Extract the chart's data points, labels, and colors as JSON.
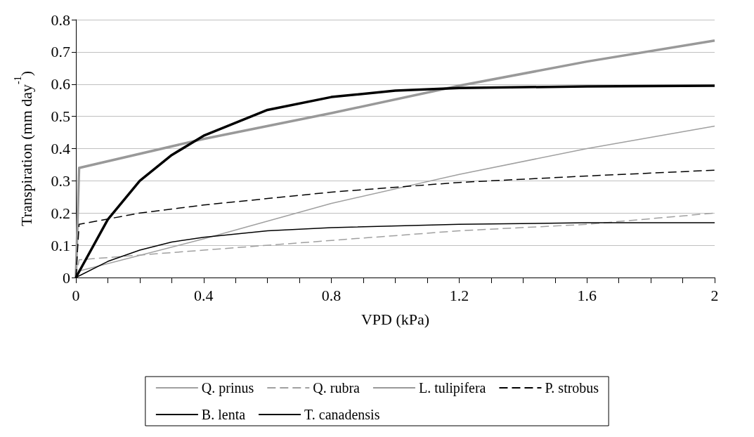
{
  "chart_data": {
    "type": "line",
    "xlabel": "VPD (kPa)",
    "ylabel": "Transpiration (mm day$^{-1}$)",
    "xlim": [
      0,
      2
    ],
    "ylim": [
      0,
      0.8
    ],
    "xticks": [
      0,
      {
        "value": 0.1,
        "label": null
      },
      {
        "value": 0.2,
        "label": null
      },
      {
        "value": 0.3,
        "label": null
      },
      0.4,
      {
        "value": 0.5,
        "label": null
      },
      {
        "value": 0.6,
        "label": null
      },
      {
        "value": 0.7,
        "label": null
      },
      0.8,
      {
        "value": 0.9,
        "label": null
      },
      {
        "value": 1.0,
        "label": null
      },
      {
        "value": 1.1,
        "label": null
      },
      1.2,
      {
        "value": 1.3,
        "label": null
      },
      {
        "value": 1.4,
        "label": null
      },
      {
        "value": 1.5,
        "label": null
      },
      1.6,
      {
        "value": 1.7,
        "label": null
      },
      {
        "value": 1.8,
        "label": null
      },
      {
        "value": 1.9,
        "label": null
      },
      2
    ],
    "yticks": [
      0,
      0.1,
      0.2,
      0.3,
      0.4,
      0.5,
      0.6,
      0.7,
      0.8
    ],
    "grid": "y",
    "legend": "bottom",
    "marker": "none",
    "series": [
      {
        "name": "Q. prinus",
        "color": "#a0a0a0",
        "line_style": "solid",
        "x": [
          0,
          0.01,
          0.4,
          0.8,
          1.2,
          1.6,
          2
        ],
        "values": [
          0,
          0.02,
          0.12,
          0.23,
          0.32,
          0.4,
          0.47
        ]
      },
      {
        "name": "Q. rubra",
        "color": "#a0a0a0",
        "line_style": "dashed",
        "x": [
          0,
          0.01,
          0.4,
          0.8,
          1.2,
          1.6,
          2
        ],
        "values": [
          0,
          0.055,
          0.085,
          0.115,
          0.145,
          0.165,
          0.2
        ]
      },
      {
        "name": "L. tulipifera",
        "color": "#999999",
        "line_style": "solid",
        "x": [
          0,
          0.01,
          0.4,
          0.8,
          1.2,
          1.6,
          2
        ],
        "values": [
          0,
          0.34,
          0.43,
          0.51,
          0.595,
          0.67,
          0.735
        ]
      },
      {
        "name": "P. strobus",
        "color": "#000000",
        "line_style": "dashed",
        "x": [
          0,
          0.01,
          0.2,
          0.4,
          0.8,
          1.2,
          1.6,
          2
        ],
        "values": [
          0,
          0.165,
          0.2,
          0.225,
          0.265,
          0.295,
          0.315,
          0.333
        ]
      },
      {
        "name": "B. lenta",
        "color": "#000000",
        "line_style": "solid",
        "x": [
          0,
          0.1,
          0.2,
          0.3,
          0.4,
          0.6,
          0.8,
          1.0,
          1.2,
          1.6,
          2
        ],
        "values": [
          0,
          0.18,
          0.3,
          0.38,
          0.44,
          0.52,
          0.56,
          0.58,
          0.588,
          0.593,
          0.595
        ]
      },
      {
        "name": "T. canadensis",
        "color": "#000000",
        "line_style": "solid",
        "x": [
          0,
          0.1,
          0.2,
          0.3,
          0.4,
          0.6,
          0.8,
          1.2,
          1.6,
          2
        ],
        "values": [
          0,
          0.05,
          0.085,
          0.11,
          0.125,
          0.145,
          0.155,
          0.165,
          0.17,
          0.17
        ]
      }
    ]
  }
}
